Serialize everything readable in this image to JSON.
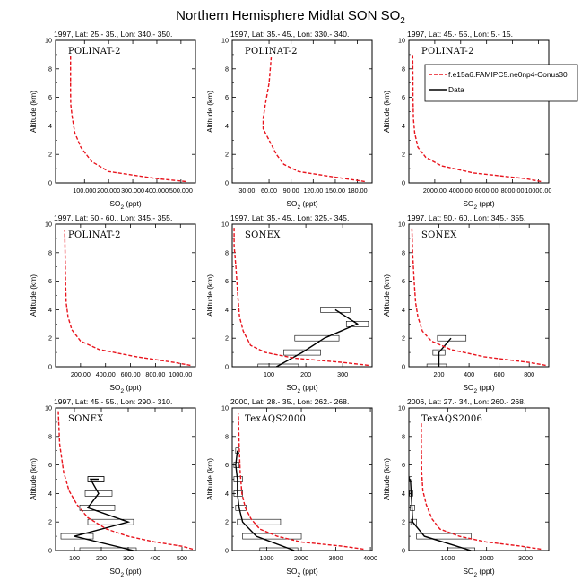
{
  "figure": {
    "title_main": "Northern Hemisphere Midlat SON SO",
    "title_sub": "2"
  },
  "legend": {
    "model_label": "f.e15a6.FAMIPC5.ne0np4-Conus30",
    "data_label": "Data"
  },
  "colors": {
    "model": "#e8141d",
    "data": "#000000"
  },
  "chart_data": [
    {
      "type": "line",
      "header": "1997, Lat: 25.- 35., Lon: 340.- 350.",
      "campaign": "POLINAT-2",
      "xlabel": "SO2 (ppt)",
      "ylabel": "Altitude (km)",
      "xlim": [
        -20000,
        560000
      ],
      "ylim": [
        0,
        10
      ],
      "xticks": [
        100000,
        200000,
        300000,
        400000,
        500000
      ],
      "xticklabels": [
        "100.000",
        "200.000",
        "300.000",
        "400.000",
        "500.000"
      ],
      "yticks": [
        0,
        2,
        4,
        6,
        8,
        10
      ],
      "model": {
        "x": [
          520000,
          400000,
          200000,
          130000,
          85000,
          60000,
          50000,
          43000,
          42000,
          42000,
          42000
        ],
        "y": [
          0.1,
          0.3,
          0.8,
          1.5,
          2.5,
          3.5,
          4.5,
          5.5,
          6.5,
          8.0,
          9.0
        ]
      }
    },
    {
      "type": "line",
      "header": "1997, Lat: 35.- 45., Lon: 330.- 340.",
      "campaign": "POLINAT-2",
      "xlabel": "SO2 (ppt)",
      "ylabel": "Altitude (km)",
      "xlim": [
        10,
        200
      ],
      "ylim": [
        0,
        10
      ],
      "xticks": [
        30,
        60,
        90,
        120,
        150,
        180
      ],
      "xticklabels": [
        "30.00",
        "60.00",
        "90.00",
        "120.00",
        "150.00",
        "180.00"
      ],
      "yticks": [
        0,
        2,
        4,
        6,
        8,
        10
      ],
      "model": {
        "x": [
          190,
          150,
          100,
          80,
          70,
          60,
          52,
          52,
          55,
          60,
          63
        ],
        "y": [
          0.1,
          0.4,
          0.8,
          1.3,
          2.0,
          3.0,
          3.8,
          4.5,
          5.5,
          7.0,
          8.8
        ]
      }
    },
    {
      "type": "line",
      "header": "1997, Lat: 45.- 55., Lon: 5.- 15.",
      "campaign": "POLINAT-2",
      "xlabel": "SO2 (ppt)",
      "ylabel": "Altitude (km)",
      "xlim": [
        0,
        10800
      ],
      "ylim": [
        0,
        10
      ],
      "xticks": [
        2000,
        4000,
        6000,
        8000,
        10000
      ],
      "xticklabels": [
        "2000.00",
        "4000.00",
        "6000.00",
        "8000.00",
        "10000.00"
      ],
      "yticks": [
        0,
        2,
        4,
        6,
        8,
        10
      ],
      "model": {
        "x": [
          10200,
          9000,
          5000,
          2500,
          1300,
          700,
          450,
          350,
          320,
          310,
          300
        ],
        "y": [
          0.1,
          0.3,
          0.7,
          1.2,
          1.8,
          2.5,
          3.5,
          4.5,
          6.0,
          7.5,
          9.0
        ]
      }
    },
    {
      "type": "line",
      "header": "1997, Lat: 50.- 60., Lon: 345.- 355.",
      "campaign": "POLINAT-2",
      "xlabel": "SO2 (ppt)",
      "ylabel": "Altitude (km)",
      "xlim": [
        0,
        1120
      ],
      "ylim": [
        0,
        10
      ],
      "xticks": [
        200,
        400,
        600,
        800,
        1000
      ],
      "xticklabels": [
        "200.00",
        "400.00",
        "600.00",
        "800.00",
        "1000.00"
      ],
      "yticks": [
        0,
        2,
        4,
        6,
        8,
        10
      ],
      "model": {
        "x": [
          1080,
          950,
          650,
          350,
          200,
          130,
          100,
          85,
          80,
          76,
          73
        ],
        "y": [
          0.1,
          0.3,
          0.7,
          1.2,
          1.8,
          2.6,
          3.5,
          4.5,
          6.0,
          8.0,
          9.6
        ]
      }
    },
    {
      "type": "line",
      "header": "1997, Lat: 35.- 45., Lon: 325.- 345.",
      "campaign": "SONEX",
      "xlabel": "SO2 (ppt)",
      "ylabel": "Altitude (km)",
      "xlim": [
        0,
        380
      ],
      "ylim": [
        0,
        10
      ],
      "xticks": [
        100,
        200,
        300
      ],
      "xticklabels": [
        "100",
        "200",
        "300"
      ],
      "yticks": [
        0,
        2,
        4,
        6,
        8,
        10
      ],
      "model": {
        "x": [
          370,
          300,
          170,
          90,
          50,
          30,
          20,
          15,
          10,
          5,
          5
        ],
        "y": [
          0.1,
          0.3,
          0.6,
          1.0,
          1.5,
          2.5,
          3.5,
          5.0,
          7.0,
          8.5,
          9.8
        ]
      },
      "data": {
        "x": [
          120,
          190,
          250,
          340,
          280
        ],
        "y": [
          0.0,
          1.0,
          2.0,
          3.0,
          4.0
        ],
        "min": [
          70,
          140,
          170,
          310,
          240
        ],
        "max": [
          180,
          240,
          290,
          370,
          320
        ]
      }
    },
    {
      "type": "line",
      "header": "1997, Lat: 50.- 60., Lon: 345.- 355.",
      "campaign": "SONEX",
      "xlabel": "SO2 (ppt)",
      "ylabel": "Altitude (km)",
      "xlim": [
        0,
        930
      ],
      "ylim": [
        0,
        10
      ],
      "xticks": [
        200,
        400,
        600,
        800
      ],
      "xticklabels": [
        "200",
        "400",
        "600",
        "800"
      ],
      "yticks": [
        0,
        2,
        4,
        6,
        8,
        10
      ],
      "model": {
        "x": [
          910,
          800,
          500,
          280,
          150,
          90,
          60,
          45,
          35,
          25,
          20
        ],
        "y": [
          0.1,
          0.3,
          0.7,
          1.2,
          1.8,
          2.5,
          3.5,
          4.5,
          6.0,
          8.0,
          9.7
        ]
      },
      "data": {
        "x": [
          200,
          200,
          280
        ],
        "y": [
          0.0,
          1.0,
          2.0
        ],
        "min": [
          120,
          160,
          190
        ],
        "max": [
          250,
          240,
          380
        ]
      }
    },
    {
      "type": "line",
      "header": "1997, Lat: 45.- 55., Lon: 290.- 310.",
      "campaign": "SONEX",
      "xlabel": "SO2 (ppt)",
      "ylabel": "Altitude (km)",
      "xlim": [
        30,
        550
      ],
      "ylim": [
        0,
        10
      ],
      "xticks": [
        100,
        200,
        300,
        400,
        500
      ],
      "xticklabels": [
        "100",
        "200",
        "300",
        "400",
        "500"
      ],
      "yticks": [
        0,
        2,
        4,
        6,
        8,
        10
      ],
      "model": {
        "x": [
          540,
          500,
          400,
          300,
          220,
          150,
          110,
          80,
          60,
          45,
          40
        ],
        "y": [
          0.1,
          0.3,
          0.6,
          1.0,
          1.5,
          2.3,
          3.2,
          4.2,
          5.5,
          7.5,
          9.8
        ]
      },
      "data": {
        "x": [
          320,
          100,
          300,
          150,
          190,
          160,
          190
        ],
        "y": [
          0.0,
          1.0,
          2.0,
          3.0,
          4.0,
          5.0,
          5.0
        ],
        "min": [
          120,
          50,
          150,
          120,
          140,
          150,
          150
        ],
        "max": [
          330,
          170,
          320,
          250,
          240,
          210,
          210
        ]
      }
    },
    {
      "type": "line",
      "header": "2000, Lat: 28.- 35., Lon: 262.- 268.",
      "campaign": "TexAQS2000",
      "xlabel": "SO2 (ppt)",
      "ylabel": "Altitude (km)",
      "xlim": [
        0,
        4050
      ],
      "ylim": [
        0,
        10
      ],
      "xticks": [
        1000,
        2000,
        3000,
        4000
      ],
      "xticklabels": [
        "1000",
        "2000",
        "3000",
        "4000"
      ],
      "yticks": [
        0,
        2,
        4,
        6,
        8,
        10
      ],
      "model": {
        "x": [
          3800,
          3200,
          2000,
          1300,
          800,
          550,
          380,
          280,
          230,
          200,
          180
        ],
        "y": [
          0.1,
          0.3,
          0.6,
          1.0,
          1.5,
          2.2,
          3.0,
          4.0,
          5.5,
          7.5,
          9.6
        ]
      },
      "data": {
        "x": [
          1800,
          700,
          300,
          200,
          150,
          150,
          100,
          150
        ],
        "y": [
          0.0,
          1.0,
          2.0,
          3.0,
          4.0,
          5.0,
          6.0,
          7.0
        ],
        "min": [
          800,
          300,
          150,
          100,
          50,
          50,
          50,
          100
        ],
        "max": [
          1900,
          2000,
          1400,
          400,
          300,
          300,
          200,
          200
        ]
      }
    },
    {
      "type": "line",
      "header": "2006, Lat: 27.- 34., Lon: 260.- 268.",
      "campaign": "TexAQS2006",
      "xlabel": "SO2 (ppt)",
      "ylabel": "Altitude (km)",
      "xlim": [
        0,
        3600
      ],
      "ylim": [
        0,
        10
      ],
      "xticks": [
        1000,
        2000,
        3000
      ],
      "xticklabels": [
        "1000",
        "2000",
        "3000"
      ],
      "yticks": [
        0,
        2,
        4,
        6,
        8,
        10
      ],
      "model": {
        "x": [
          3400,
          2900,
          2000,
          1300,
          800,
          600,
          450,
          360,
          330,
          320,
          320
        ],
        "y": [
          0.1,
          0.3,
          0.6,
          1.0,
          1.5,
          2.2,
          3.2,
          4.2,
          5.5,
          7.5,
          9.0
        ]
      },
      "data": {
        "x": [
          1600,
          400,
          100,
          80,
          60,
          40
        ],
        "y": [
          0.0,
          1.0,
          2.0,
          3.0,
          4.0,
          5.0
        ],
        "min": [
          1000,
          200,
          50,
          30,
          20,
          20
        ],
        "max": [
          1700,
          1600,
          200,
          150,
          100,
          80
        ]
      }
    }
  ]
}
